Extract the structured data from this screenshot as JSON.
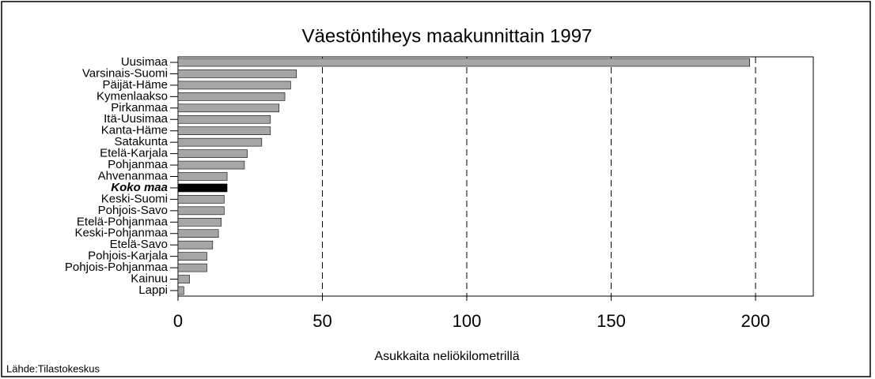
{
  "chart_data": {
    "type": "barh",
    "title": "Väestöntiheys maakunnittain 1997",
    "xlabel": "Asukkaita neliökilometrillä",
    "source": "Lähde:Tilastokeskus",
    "categories": [
      "Uusimaa",
      "Varsinais-Suomi",
      "Päijät-Häme",
      "Kymenlaakso",
      "Pirkanmaa",
      "Itä-Uusimaa",
      "Kanta-Häme",
      "Satakunta",
      "Etelä-Karjala",
      "Pohjanmaa",
      "Ahvenanmaa",
      "Koko maa",
      "Keski-Suomi",
      "Pohjois-Savo",
      "Etelä-Pohjanmaa",
      "Keski-Pohjanmaa",
      "Etelä-Savo",
      "Pohjois-Karjala",
      "Pohjois-Pohjanmaa",
      "Kainuu",
      "Lappi"
    ],
    "values": [
      198,
      41,
      39,
      37,
      35,
      32,
      32,
      29,
      24,
      23,
      17,
      17,
      16,
      16,
      15,
      14,
      12,
      10,
      10,
      4,
      2
    ],
    "colors": [
      "#a6a6a6",
      "#a6a6a6",
      "#a6a6a6",
      "#a6a6a6",
      "#a6a6a6",
      "#a6a6a6",
      "#a6a6a6",
      "#a6a6a6",
      "#a6a6a6",
      "#a6a6a6",
      "#a6a6a6",
      "#000000",
      "#a6a6a6",
      "#a6a6a6",
      "#a6a6a6",
      "#a6a6a6",
      "#a6a6a6",
      "#a6a6a6",
      "#a6a6a6",
      "#a6a6a6",
      "#a6a6a6"
    ],
    "xlim": [
      0,
      220
    ],
    "xticks": [
      0,
      50,
      100,
      150,
      200
    ],
    "grid": true
  }
}
